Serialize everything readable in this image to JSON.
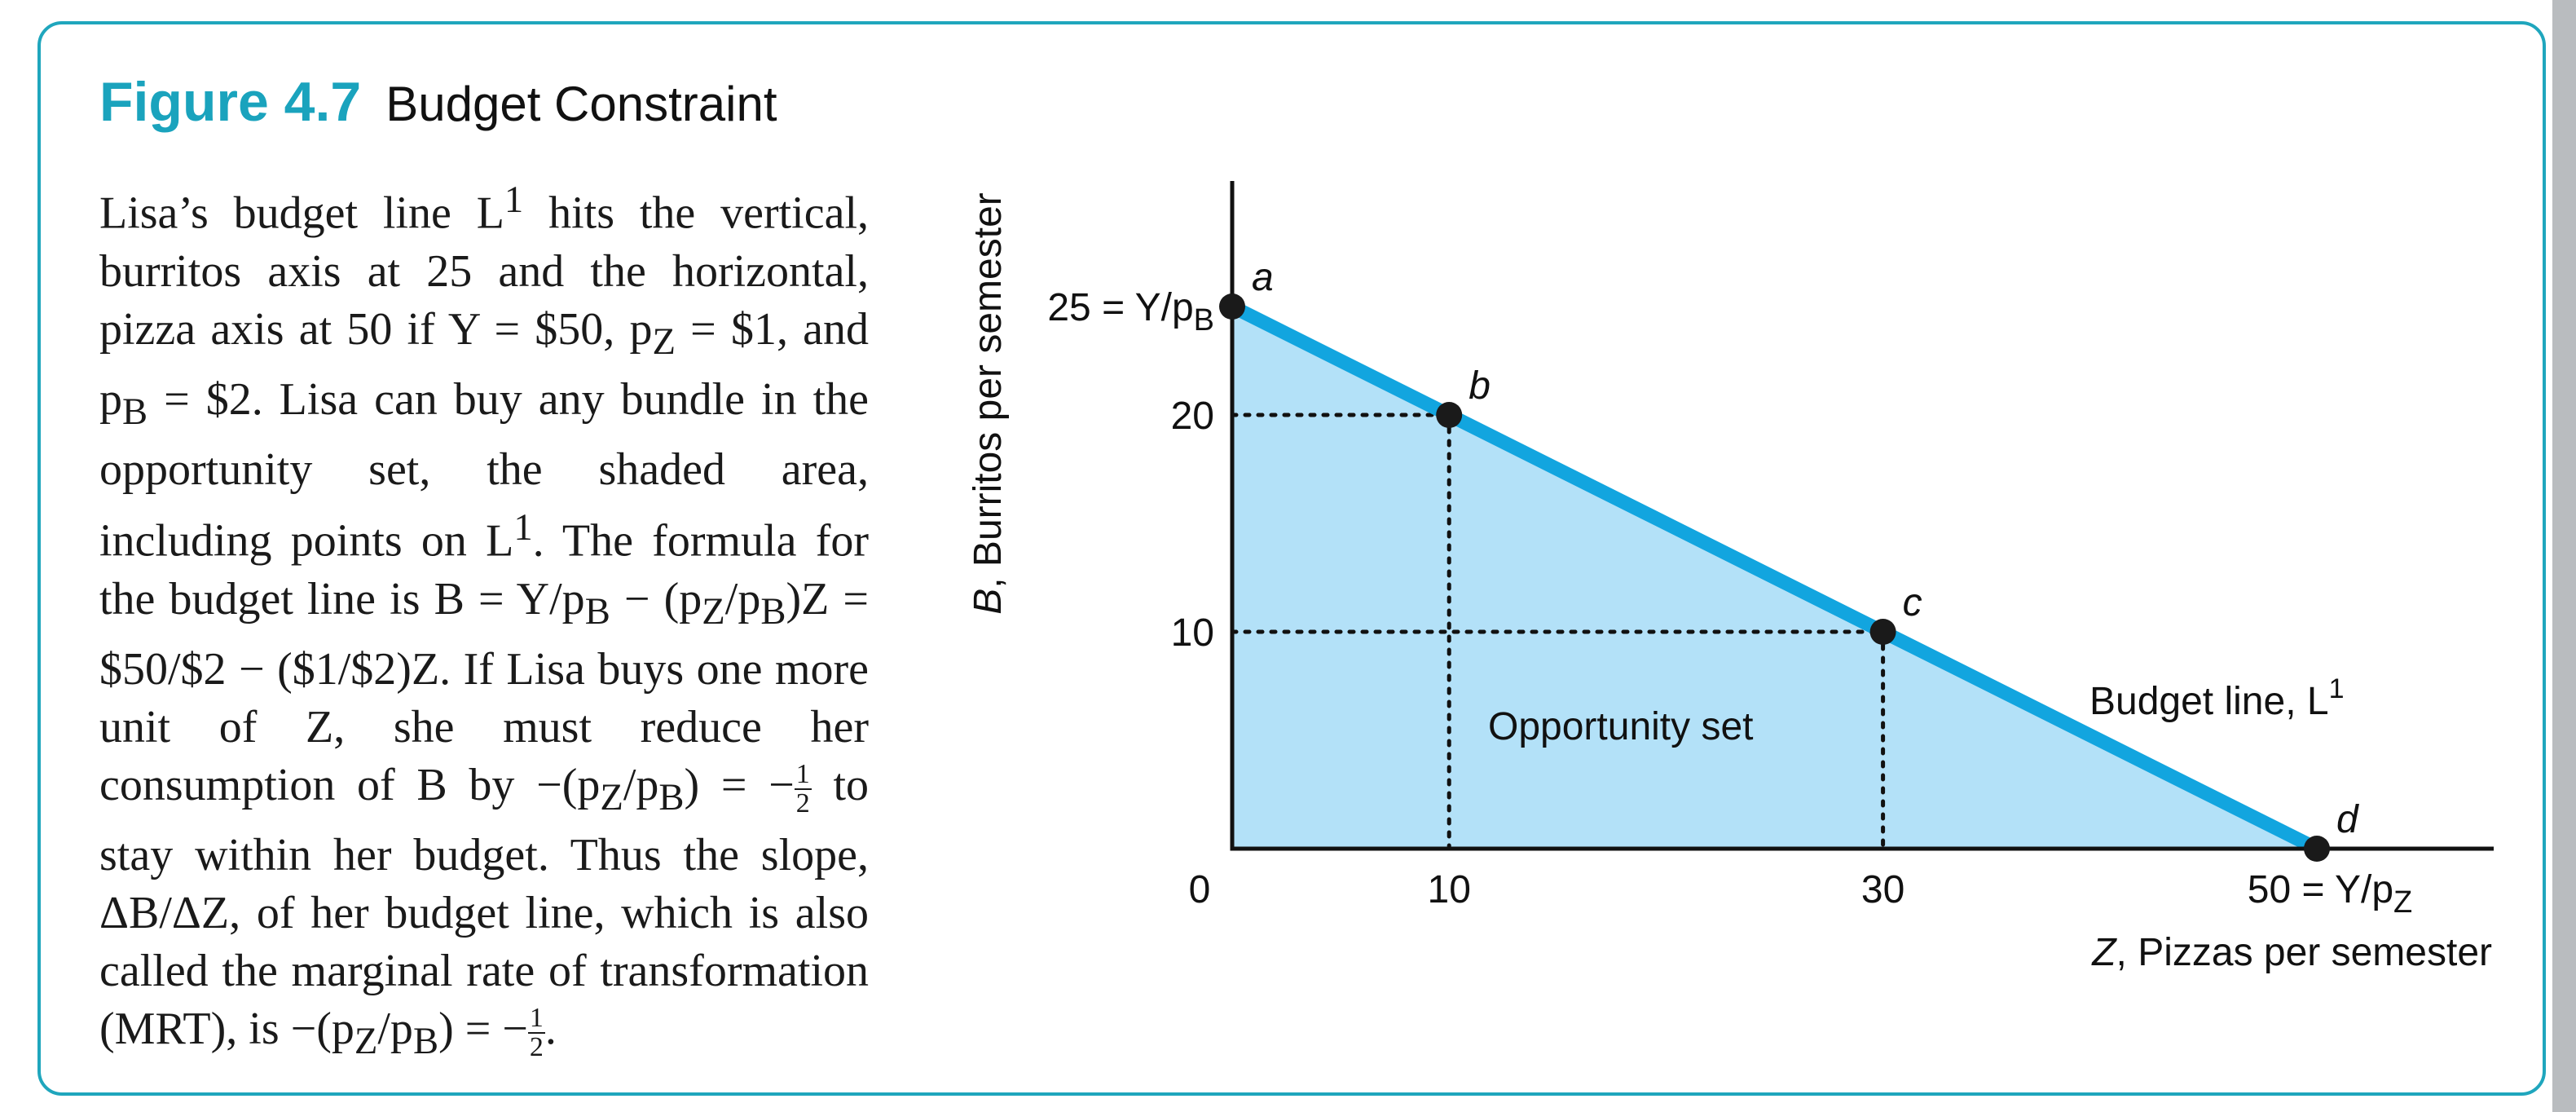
{
  "figure": {
    "label": "Figure 4.7",
    "title": "Budget Constraint"
  },
  "caption": {
    "segments": [
      "Lisa’s budget line L",
      "1",
      " hits the vertical, burritos axis at 25 and the horizontal, pizza axis at 50 if Y = $50, p",
      "Z",
      " = $1, and p",
      "B",
      " = $2. Lisa can buy any bundle in the opportunity set, the shaded area, including points on L",
      "1",
      ". The formula for the budget line is B = Y/p",
      "B",
      " − (p",
      "Z",
      "/p",
      "B",
      ")Z = $50/$2 − ($1/$2)Z. If Lisa buys one more unit of Z, she must reduce her consumption of B by −(p",
      "Z",
      "/p",
      "B",
      ") = −",
      "1",
      "2",
      " to stay within her budget. Thus the slope, ΔB/ΔZ, of her budget line, which is also called the marginal rate of transformation (MRT), is −(p",
      "Z",
      "/p",
      "B",
      ") = −",
      "1",
      "2",
      "."
    ]
  },
  "chart_data": {
    "type": "line",
    "xlabel": {
      "var": "Z",
      "text": ", Pizzas per semester"
    },
    "ylabel": {
      "var": "B",
      "text": ", Burritos per semester"
    },
    "xlim": [
      0,
      58
    ],
    "ylim": [
      0,
      31
    ],
    "x_ticks": [
      {
        "value": 0,
        "label": "0"
      },
      {
        "value": 10,
        "label": "10"
      },
      {
        "value": 30,
        "label": "30"
      },
      {
        "value": 50,
        "label": "50 = Y/p",
        "sub": "Z"
      }
    ],
    "y_ticks": [
      {
        "value": 10,
        "label": "10"
      },
      {
        "value": 20,
        "label": "20"
      },
      {
        "value": 25,
        "label": "25 = Y/p",
        "sub": "B"
      }
    ],
    "series": [
      {
        "name": "Budget line, L",
        "sup": "1",
        "x": [
          0,
          50
        ],
        "y": [
          25,
          0
        ],
        "color": "#12a5df"
      }
    ],
    "points": [
      {
        "label": "a",
        "x": 0,
        "y": 25
      },
      {
        "label": "b",
        "x": 10,
        "y": 20
      },
      {
        "label": "c",
        "x": 30,
        "y": 10
      },
      {
        "label": "d",
        "x": 50,
        "y": 0
      }
    ],
    "shaded_region": {
      "label": "Opportunity set",
      "color": "#b3e1f8"
    },
    "dotted_guides": true,
    "grid": false,
    "legend": "none"
  }
}
